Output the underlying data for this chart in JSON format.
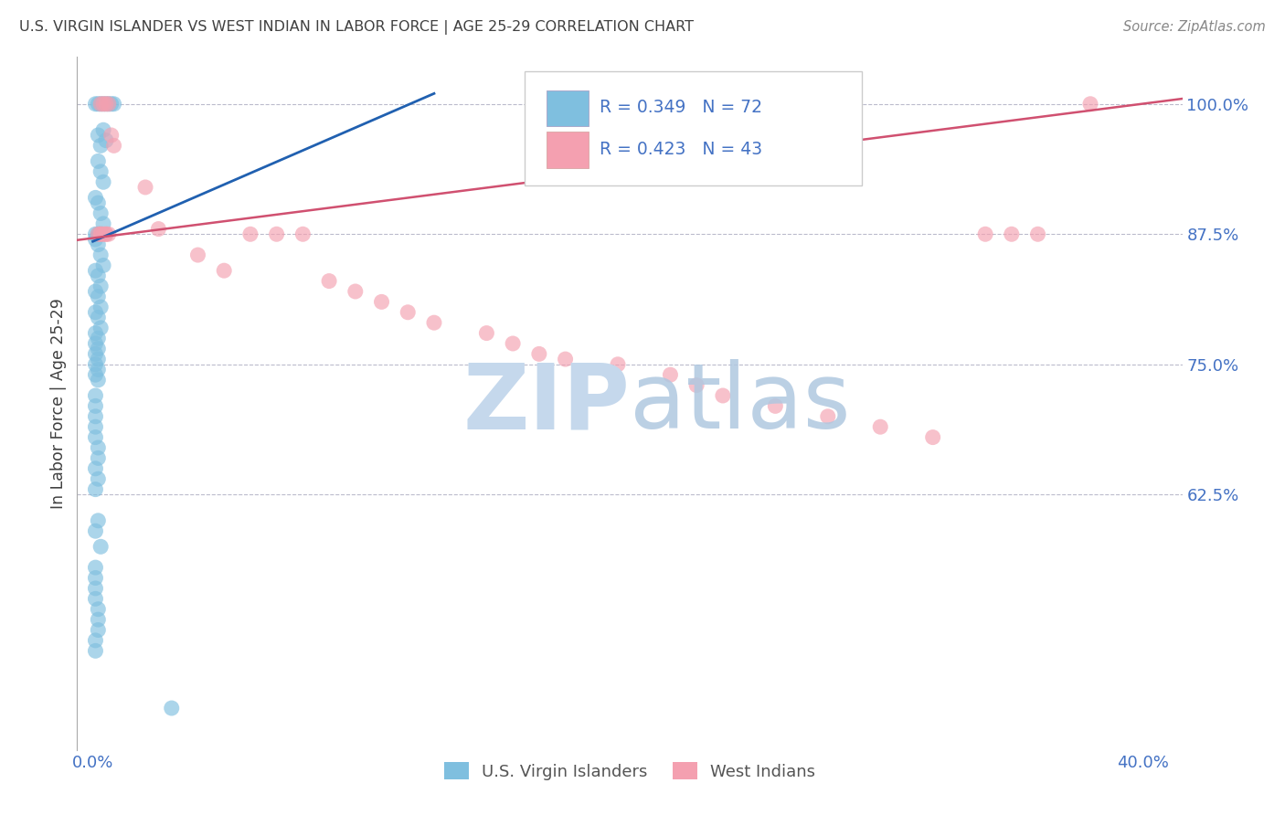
{
  "title": "U.S. VIRGIN ISLANDER VS WEST INDIAN IN LABOR FORCE | AGE 25-29 CORRELATION CHART",
  "source": "Source: ZipAtlas.com",
  "ylabel": "In Labor Force | Age 25-29",
  "xlim": [
    -0.006,
    0.415
  ],
  "ylim": [
    0.38,
    1.045
  ],
  "blue_R": 0.349,
  "blue_N": 72,
  "pink_R": 0.423,
  "pink_N": 43,
  "blue_color": "#7fbfdf",
  "pink_color": "#f4a0b0",
  "blue_line_color": "#2060b0",
  "pink_line_color": "#d05070",
  "axis_color": "#4472c4",
  "grid_color": "#bbbbcc",
  "bg_color": "#ffffff",
  "title_color": "#404040",
  "legend_label1": "U.S. Virgin Islanders",
  "legend_label2": "West Indians",
  "y_tick_positions": [
    0.625,
    0.75,
    0.875,
    1.0
  ],
  "y_tick_labels": [
    "62.5%",
    "75.0%",
    "87.5%",
    "100.0%"
  ],
  "x_tick_positions": [
    0.0,
    0.05,
    0.1,
    0.15,
    0.2,
    0.25,
    0.3,
    0.35,
    0.4
  ],
  "x_tick_labels": [
    "0.0%",
    "",
    "",
    "",
    "",
    "",
    "",
    "",
    "40.0%"
  ]
}
